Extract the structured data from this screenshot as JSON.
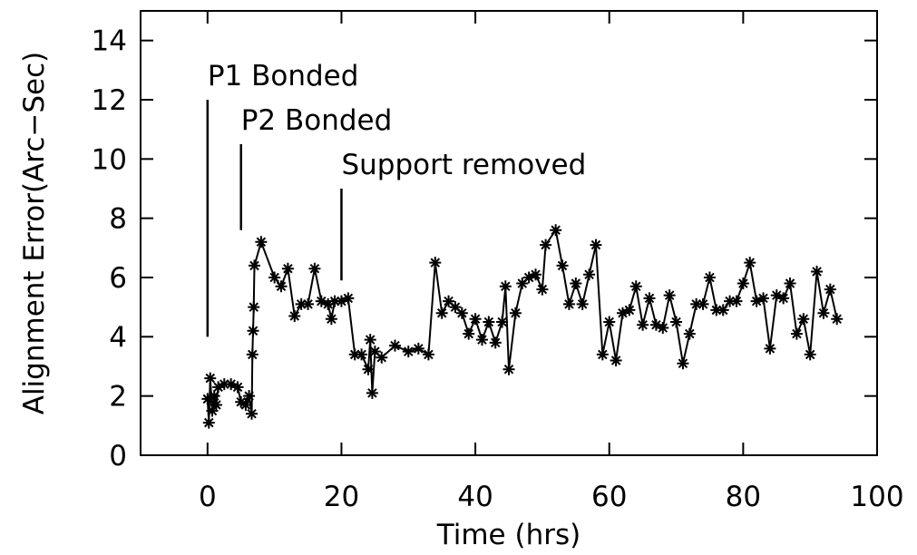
{
  "chart_data": {
    "type": "line",
    "xlabel": "Time (hrs)",
    "ylabel": "Alignment Error(Arc−Sec)",
    "xlim": [
      -10,
      100
    ],
    "xticks": [
      0,
      20,
      40,
      60,
      80,
      100
    ],
    "ylim": [
      0,
      15
    ],
    "yticks": [
      0,
      2,
      4,
      6,
      8,
      10,
      12,
      14
    ],
    "color": "#000000",
    "marker": "asterisk",
    "annotations": [
      {
        "text": "P1 Bonded",
        "x": 0,
        "y1": 4,
        "y2": 12
      },
      {
        "text": "P2 Bonded",
        "x": 5,
        "y1": 7.6,
        "y2": 10.5
      },
      {
        "text": "Support removed",
        "x": 20,
        "y1": 5.9,
        "y2": 9
      }
    ],
    "x": [
      0,
      0.2,
      0.4,
      0.7,
      1,
      1.3,
      1.6,
      2.5,
      3.5,
      4.5,
      5,
      5.7,
      6.2,
      6.6,
      6.7,
      6.8,
      6.9,
      7,
      8,
      10,
      11,
      12,
      13,
      14,
      15,
      16,
      17,
      18,
      18.5,
      19,
      20,
      21,
      22,
      23,
      24,
      24.3,
      24.6,
      25,
      26,
      28,
      30,
      31.5,
      33,
      34,
      35,
      36,
      37,
      38,
      39,
      40,
      41,
      42,
      43,
      44,
      44.5,
      45,
      46,
      47,
      48,
      49,
      50,
      50.5,
      52,
      53,
      54,
      55,
      56,
      57,
      58,
      59,
      60,
      61,
      62,
      63,
      64,
      65,
      66,
      67,
      68,
      69,
      70,
      71,
      72,
      73,
      74,
      75,
      76,
      77,
      78,
      79,
      80,
      81,
      82,
      83,
      84,
      85,
      86,
      87,
      88,
      89,
      90,
      91,
      92,
      93,
      94
    ],
    "values": [
      1.9,
      1.1,
      2.6,
      1.5,
      2.0,
      1.7,
      2.3,
      2.4,
      2.4,
      2.3,
      1.8,
      1.7,
      2.0,
      1.4,
      3.4,
      4.2,
      5.0,
      6.4,
      7.2,
      6.0,
      5.7,
      6.3,
      4.7,
      5.1,
      5.1,
      6.3,
      5.2,
      5.1,
      4.6,
      5.2,
      5.2,
      5.3,
      3.4,
      3.4,
      2.9,
      3.9,
      2.1,
      3.5,
      3.3,
      3.7,
      3.5,
      3.6,
      3.4,
      6.5,
      4.8,
      5.2,
      5.0,
      4.8,
      4.1,
      4.6,
      3.9,
      4.5,
      3.8,
      4.5,
      5.7,
      2.9,
      4.8,
      5.8,
      6.0,
      6.1,
      5.6,
      7.1,
      7.6,
      6.4,
      5.1,
      5.8,
      5.1,
      6.1,
      7.1,
      3.4,
      4.5,
      3.2,
      4.8,
      4.9,
      5.7,
      4.4,
      5.3,
      4.4,
      4.3,
      5.4,
      4.5,
      3.1,
      4.1,
      5.1,
      5.1,
      6.0,
      4.9,
      4.9,
      5.2,
      5.2,
      5.8,
      6.5,
      5.2,
      5.3,
      3.6,
      5.4,
      5.3,
      5.8,
      4.1,
      4.6,
      3.4,
      6.2,
      4.8,
      5.6,
      4.6
    ]
  }
}
